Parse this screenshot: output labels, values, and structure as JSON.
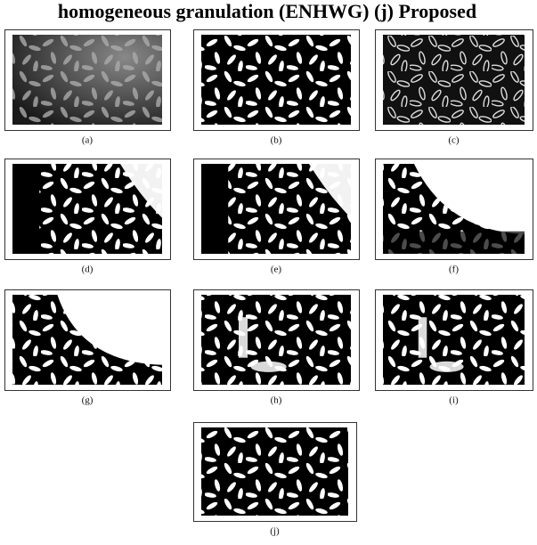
{
  "title": "homogeneous granulation (ENHWG) (j) Proposed",
  "panels": [
    {
      "label": "(a)"
    },
    {
      "label": "(b)"
    },
    {
      "label": "(c)"
    },
    {
      "label": "(d)"
    },
    {
      "label": "(e)"
    },
    {
      "label": "(f)"
    },
    {
      "label": "(g)"
    },
    {
      "label": "(h)"
    },
    {
      "label": "(i)"
    },
    {
      "label": "(j)"
    }
  ]
}
